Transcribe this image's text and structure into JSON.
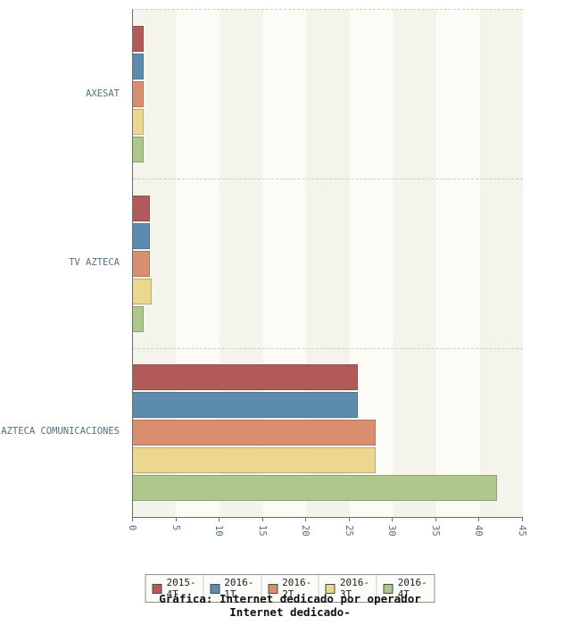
{
  "chart_data": {
    "type": "bar",
    "orientation": "horizontal",
    "title": "Gráfica: Internet dedicado por operador",
    "subtitle": "Internet dedicado-",
    "categories": [
      "AXESAT",
      "TV AZTECA",
      "AZTECA COMUNICACIONES"
    ],
    "series": [
      {
        "name": "2015-4T",
        "color": "#b25959",
        "values": [
          1.2,
          2.0,
          26
        ]
      },
      {
        "name": "2016-1T",
        "color": "#5b8cb0",
        "values": [
          1.2,
          2.0,
          26
        ]
      },
      {
        "name": "2016-2T",
        "color": "#d98e70",
        "values": [
          1.2,
          2.0,
          28
        ]
      },
      {
        "name": "2016-3T",
        "color": "#ecd78f",
        "values": [
          1.2,
          2.2,
          28
        ]
      },
      {
        "name": "2016-4T",
        "color": "#aec78c",
        "values": [
          1.2,
          1.2,
          42
        ]
      }
    ],
    "xlim": [
      0,
      45
    ],
    "xticks": [
      0,
      5,
      10,
      15,
      20,
      25,
      30,
      35,
      40,
      45
    ],
    "grid": "dashed-horizontal-group-separators",
    "legend_position": "bottom",
    "text_color": "#54707f"
  }
}
